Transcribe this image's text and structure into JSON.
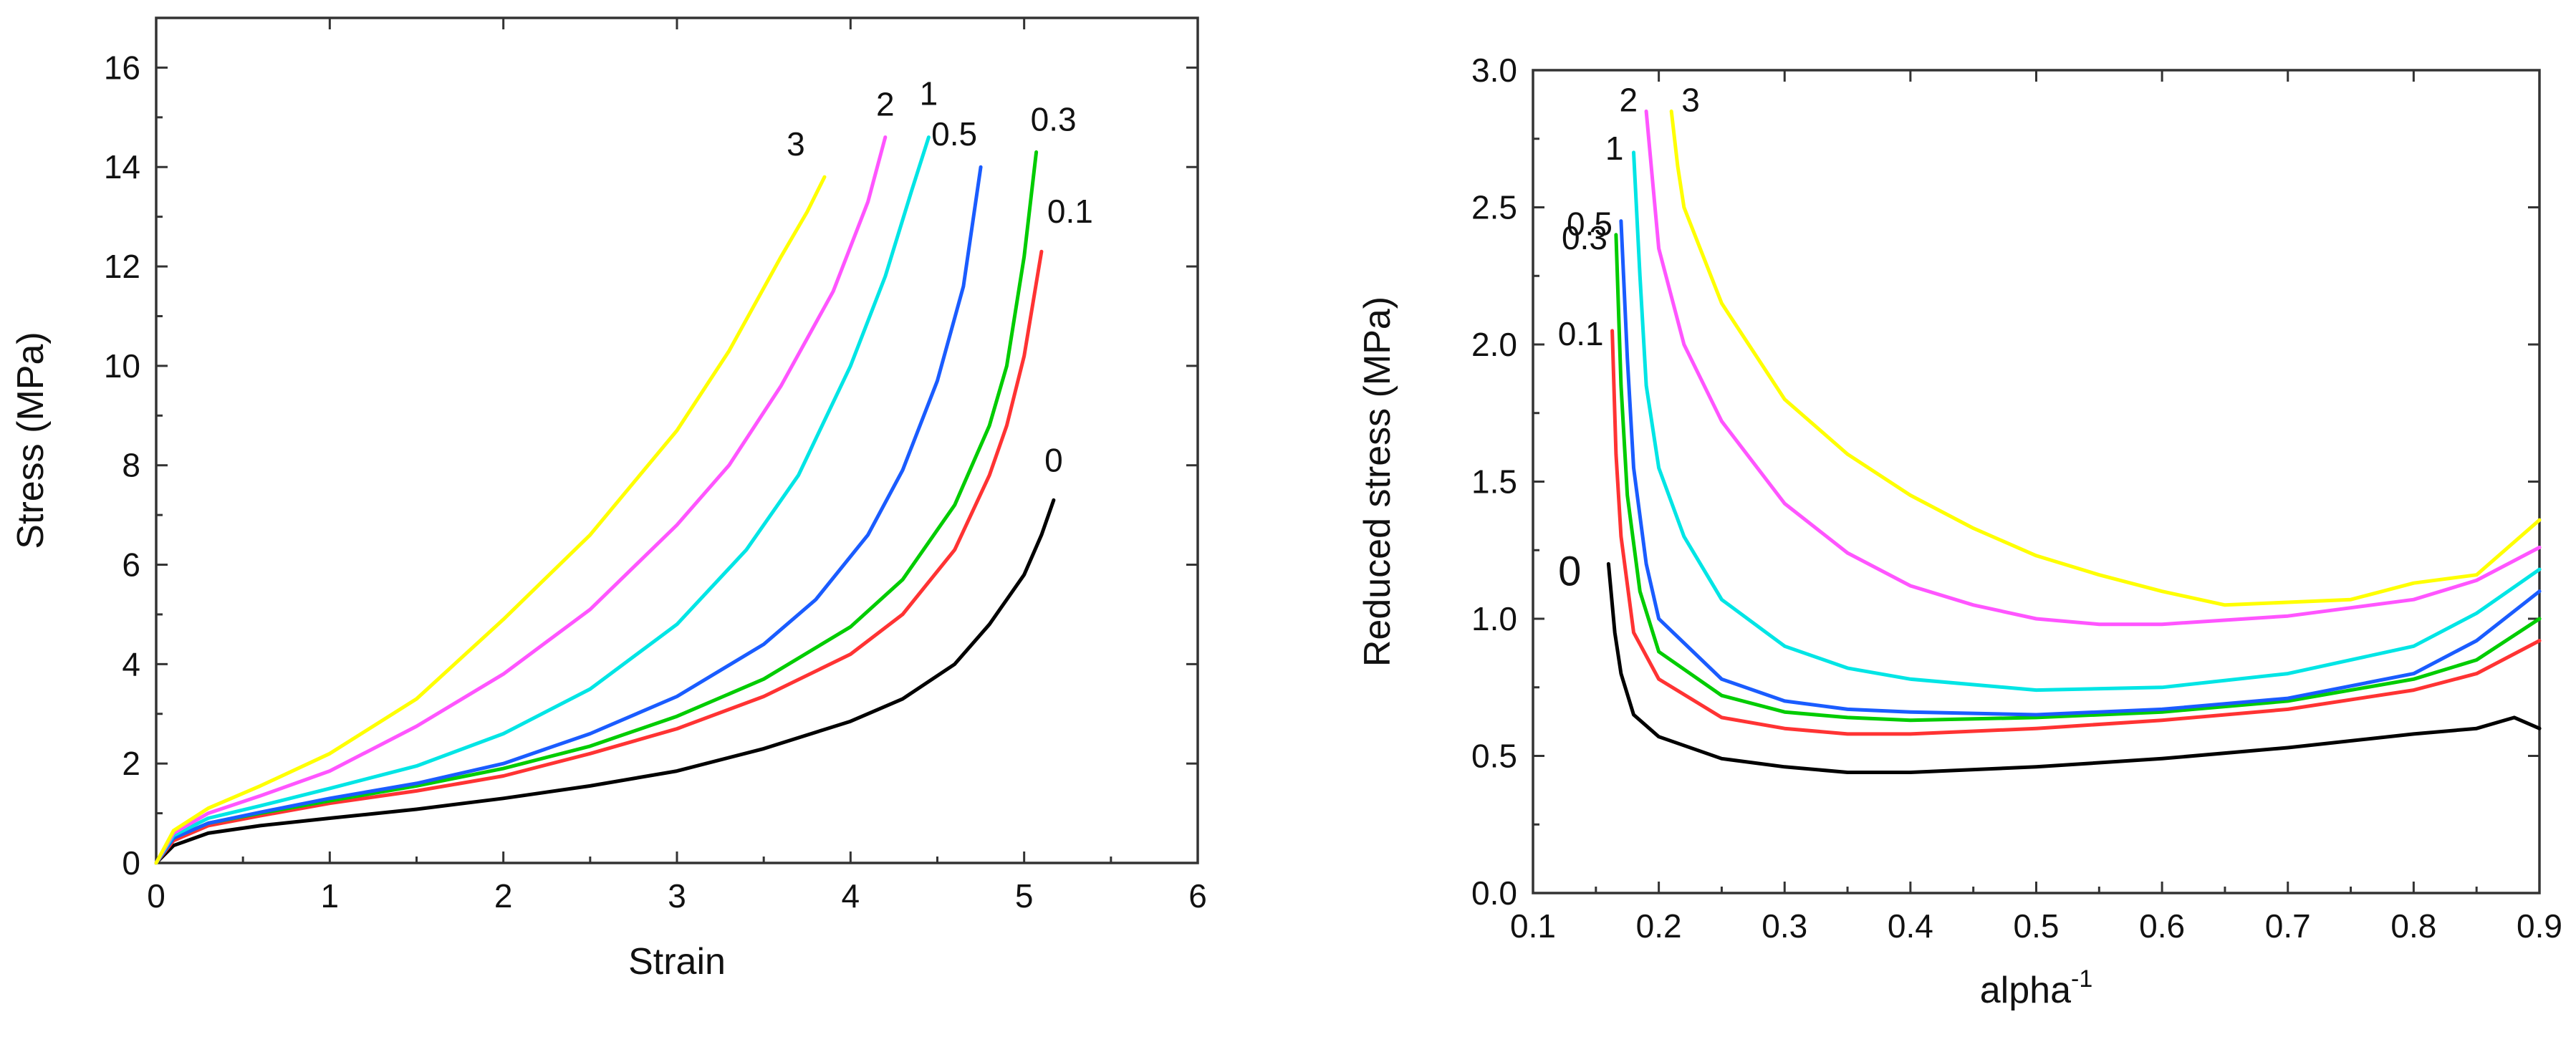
{
  "chart_data": [
    {
      "type": "line",
      "title": "",
      "xlabel": "Strain",
      "ylabel": "Stress (MPa)",
      "xlim": [
        0,
        6
      ],
      "ylim": [
        0,
        17
      ],
      "xticks": [
        "0",
        "1",
        "2",
        "3",
        "4",
        "5",
        "6"
      ],
      "yticks": [
        "0",
        "2",
        "4",
        "6",
        "8",
        "10",
        "12",
        "14",
        "16"
      ],
      "series": [
        {
          "name": "0",
          "color": "#000000",
          "x": [
            0,
            0.1,
            0.3,
            0.6,
            1.0,
            1.5,
            2.0,
            2.5,
            3.0,
            3.5,
            4.0,
            4.3,
            4.6,
            4.8,
            5.0,
            5.1,
            5.17
          ],
          "y": [
            0,
            0.35,
            0.6,
            0.75,
            0.9,
            1.08,
            1.3,
            1.55,
            1.85,
            2.3,
            2.85,
            3.3,
            4.0,
            4.8,
            5.8,
            6.6,
            7.3
          ]
        },
        {
          "name": "0.1",
          "color": "#ff3333",
          "x": [
            0,
            0.1,
            0.3,
            0.6,
            1.0,
            1.5,
            2.0,
            2.5,
            3.0,
            3.5,
            4.0,
            4.3,
            4.6,
            4.8,
            4.9,
            5.0,
            5.1
          ],
          "y": [
            0,
            0.45,
            0.75,
            0.95,
            1.2,
            1.45,
            1.75,
            2.2,
            2.7,
            3.35,
            4.2,
            5.0,
            6.3,
            7.8,
            8.8,
            10.2,
            12.3
          ]
        },
        {
          "name": "0.3",
          "color": "#00cc00",
          "x": [
            0,
            0.1,
            0.3,
            0.6,
            1.0,
            1.5,
            2.0,
            2.5,
            3.0,
            3.5,
            4.0,
            4.3,
            4.6,
            4.8,
            4.9,
            5.0,
            5.07
          ],
          "y": [
            0,
            0.5,
            0.8,
            1.0,
            1.25,
            1.55,
            1.9,
            2.35,
            2.95,
            3.7,
            4.75,
            5.7,
            7.2,
            8.8,
            10.0,
            12.2,
            14.3
          ]
        },
        {
          "name": "0.5",
          "color": "#1a5cff",
          "x": [
            0,
            0.1,
            0.3,
            0.6,
            1.0,
            1.5,
            2.0,
            2.5,
            3.0,
            3.5,
            3.8,
            4.1,
            4.3,
            4.5,
            4.65,
            4.75
          ],
          "y": [
            0,
            0.5,
            0.8,
            1.02,
            1.3,
            1.6,
            2.0,
            2.6,
            3.35,
            4.4,
            5.3,
            6.6,
            7.9,
            9.7,
            11.6,
            14.0
          ]
        },
        {
          "name": "1",
          "color": "#00e5e5",
          "x": [
            0,
            0.1,
            0.3,
            0.6,
            1.0,
            1.5,
            2.0,
            2.5,
            3.0,
            3.4,
            3.7,
            4.0,
            4.2,
            4.35,
            4.45
          ],
          "y": [
            0,
            0.55,
            0.9,
            1.15,
            1.5,
            1.95,
            2.6,
            3.5,
            4.8,
            6.3,
            7.8,
            10.0,
            11.8,
            13.5,
            14.6
          ]
        },
        {
          "name": "2",
          "color": "#ff55ff",
          "x": [
            0,
            0.1,
            0.3,
            0.6,
            1.0,
            1.5,
            2.0,
            2.5,
            3.0,
            3.3,
            3.6,
            3.9,
            4.1,
            4.2
          ],
          "y": [
            0,
            0.6,
            1.0,
            1.35,
            1.85,
            2.75,
            3.8,
            5.1,
            6.8,
            8.0,
            9.6,
            11.5,
            13.3,
            14.6
          ]
        },
        {
          "name": "3",
          "color": "#ffff00",
          "x": [
            0,
            0.1,
            0.3,
            0.6,
            1.0,
            1.5,
            2.0,
            2.5,
            3.0,
            3.3,
            3.6,
            3.75,
            3.85
          ],
          "y": [
            0,
            0.65,
            1.1,
            1.55,
            2.2,
            3.3,
            4.9,
            6.6,
            8.7,
            10.3,
            12.2,
            13.1,
            13.8
          ]
        }
      ]
    },
    {
      "type": "line",
      "title": "",
      "xlabel": "alpha",
      "xlabel_superscript": "-1",
      "ylabel": "Reduced stress (MPa)",
      "xlim": [
        0.1,
        0.9
      ],
      "ylim": [
        0.0,
        3.0
      ],
      "xticks": [
        "0.1",
        "0.2",
        "0.3",
        "0.4",
        "0.5",
        "0.6",
        "0.7",
        "0.8",
        "0.9"
      ],
      "yticks": [
        "0.0",
        "0.5",
        "1.0",
        "1.5",
        "2.0",
        "2.5",
        "3.0"
      ],
      "series": [
        {
          "name": "0",
          "color": "#000000",
          "x": [
            0.16,
            0.165,
            0.17,
            0.18,
            0.2,
            0.25,
            0.3,
            0.35,
            0.4,
            0.5,
            0.6,
            0.7,
            0.8,
            0.85,
            0.88,
            0.9
          ],
          "y": [
            1.2,
            0.95,
            0.8,
            0.65,
            0.57,
            0.49,
            0.46,
            0.44,
            0.44,
            0.46,
            0.49,
            0.53,
            0.58,
            0.6,
            0.64,
            0.6
          ]
        },
        {
          "name": "0.1",
          "color": "#ff3333",
          "x": [
            0.163,
            0.166,
            0.17,
            0.18,
            0.2,
            0.25,
            0.3,
            0.35,
            0.4,
            0.5,
            0.6,
            0.7,
            0.8,
            0.85,
            0.9
          ],
          "y": [
            2.05,
            1.6,
            1.3,
            0.95,
            0.78,
            0.64,
            0.6,
            0.58,
            0.58,
            0.6,
            0.63,
            0.67,
            0.74,
            0.8,
            0.92
          ]
        },
        {
          "name": "0.3",
          "color": "#00cc00",
          "x": [
            0.166,
            0.17,
            0.175,
            0.185,
            0.2,
            0.25,
            0.3,
            0.35,
            0.4,
            0.5,
            0.6,
            0.7,
            0.8,
            0.85,
            0.9
          ],
          "y": [
            2.4,
            1.85,
            1.45,
            1.1,
            0.88,
            0.72,
            0.66,
            0.64,
            0.63,
            0.64,
            0.66,
            0.7,
            0.78,
            0.85,
            1.0
          ]
        },
        {
          "name": "0.5",
          "color": "#1a5cff",
          "x": [
            0.17,
            0.175,
            0.18,
            0.19,
            0.2,
            0.25,
            0.3,
            0.35,
            0.4,
            0.5,
            0.6,
            0.7,
            0.8,
            0.85,
            0.9
          ],
          "y": [
            2.45,
            1.95,
            1.55,
            1.2,
            1.0,
            0.78,
            0.7,
            0.67,
            0.66,
            0.65,
            0.67,
            0.71,
            0.8,
            0.92,
            1.1
          ]
        },
        {
          "name": "1",
          "color": "#00e5e5",
          "x": [
            0.18,
            0.185,
            0.19,
            0.2,
            0.22,
            0.25,
            0.3,
            0.35,
            0.4,
            0.5,
            0.6,
            0.7,
            0.8,
            0.85,
            0.9
          ],
          "y": [
            2.7,
            2.25,
            1.85,
            1.55,
            1.3,
            1.07,
            0.9,
            0.82,
            0.78,
            0.74,
            0.75,
            0.8,
            0.9,
            1.02,
            1.18
          ]
        },
        {
          "name": "2",
          "color": "#ff55ff",
          "x": [
            0.19,
            0.195,
            0.2,
            0.22,
            0.25,
            0.3,
            0.35,
            0.4,
            0.45,
            0.5,
            0.55,
            0.6,
            0.7,
            0.8,
            0.85,
            0.9
          ],
          "y": [
            2.85,
            2.6,
            2.35,
            2.0,
            1.72,
            1.42,
            1.24,
            1.12,
            1.05,
            1.0,
            0.98,
            0.98,
            1.01,
            1.07,
            1.14,
            1.26
          ]
        },
        {
          "name": "3",
          "color": "#ffff00",
          "x": [
            0.21,
            0.215,
            0.22,
            0.25,
            0.3,
            0.35,
            0.4,
            0.45,
            0.5,
            0.55,
            0.6,
            0.65,
            0.7,
            0.75,
            0.8,
            0.85,
            0.9
          ],
          "y": [
            2.85,
            2.65,
            2.5,
            2.15,
            1.8,
            1.6,
            1.45,
            1.33,
            1.23,
            1.16,
            1.1,
            1.05,
            1.06,
            1.07,
            1.13,
            1.16,
            1.36
          ]
        }
      ]
    }
  ]
}
